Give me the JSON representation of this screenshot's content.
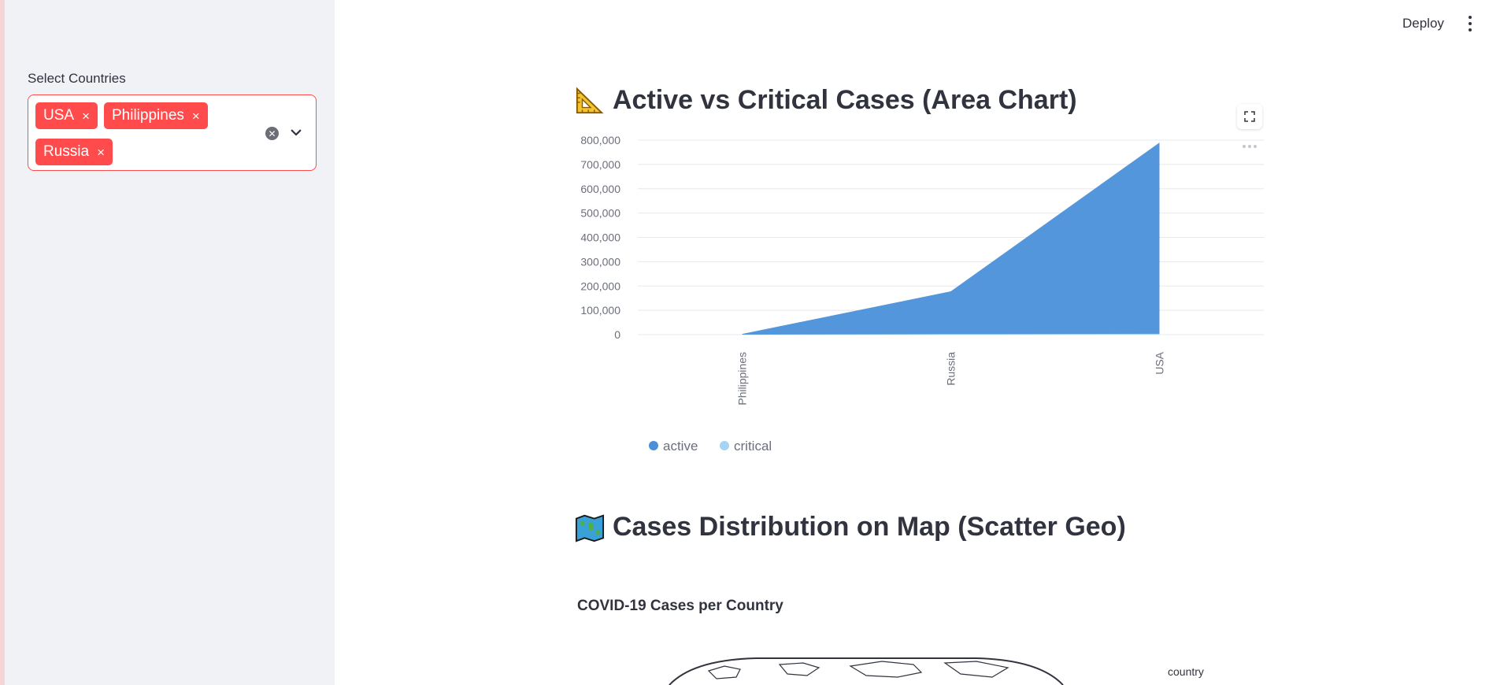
{
  "sidebar": {
    "select_label": "Select Countries",
    "selected": [
      "USA",
      "Philippines",
      "Russia"
    ],
    "chip_remove_glyph": "×",
    "accent_color": "#ff4b4b"
  },
  "header": {
    "deploy_label": "Deploy",
    "menu_icon": "kebab-menu-icon"
  },
  "main": {
    "area_heading": "Active vs Critical Cases (Area Chart)",
    "area_heading_icon": "triangular-ruler-icon",
    "map_heading": "Cases Distribution on Map (Scatter Geo)",
    "map_heading_icon": "world-map-icon",
    "map_chart_title": "COVID-19 Cases per Country",
    "map_legend_title": "country"
  },
  "chart_data": {
    "type": "area",
    "categories": [
      "Philippines",
      "Russia",
      "USA"
    ],
    "series": [
      {
        "name": "active",
        "values": [
          3000,
          178000,
          790000
        ],
        "color": "#4a90d9"
      },
      {
        "name": "critical",
        "values": [
          200,
          2300,
          3500
        ],
        "color": "#a5d4f5"
      }
    ],
    "ylim": [
      0,
      800000
    ],
    "yticks": [
      0,
      100000,
      200000,
      300000,
      400000,
      500000,
      600000,
      700000,
      800000
    ],
    "ytick_labels": [
      "0",
      "100,000",
      "200,000",
      "300,000",
      "400,000",
      "500,000",
      "600,000",
      "700,000",
      "800,000"
    ],
    "grid": true,
    "legend_position": "bottom-left"
  }
}
